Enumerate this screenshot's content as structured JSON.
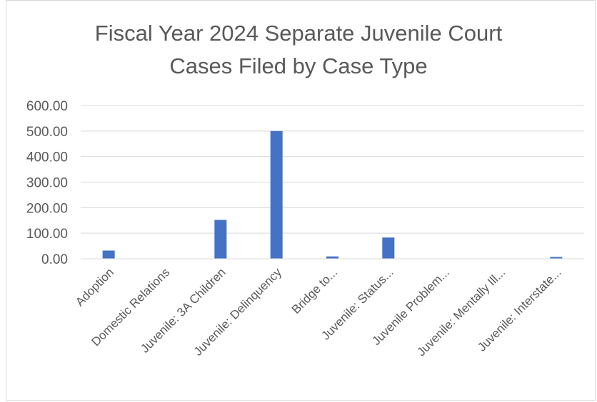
{
  "chart_data": {
    "type": "bar",
    "title_line1": "Fiscal Year 2024 Separate Juvenile Court",
    "title_line2": "Cases Filed by Case Type",
    "xlabel": "",
    "ylabel": "",
    "ylim": [
      0,
      600
    ],
    "y_ticks": [
      "0.00",
      "100.00",
      "200.00",
      "300.00",
      "400.00",
      "500.00",
      "600.00"
    ],
    "grid": true,
    "legend": "none",
    "bar_color": "#4472c4",
    "categories": [
      "Adoption",
      "Domestic Relations",
      "Juvenile: 3A Children",
      "Juvenile: Delinquency",
      "Bridge to...",
      "Juvenile: Status...",
      "Juvenile Problem...",
      "Juvenile: Mentally Ill...",
      "Juvenile: Interstate..."
    ],
    "values": [
      32,
      0,
      152,
      500,
      9,
      83,
      0,
      0,
      7
    ]
  }
}
